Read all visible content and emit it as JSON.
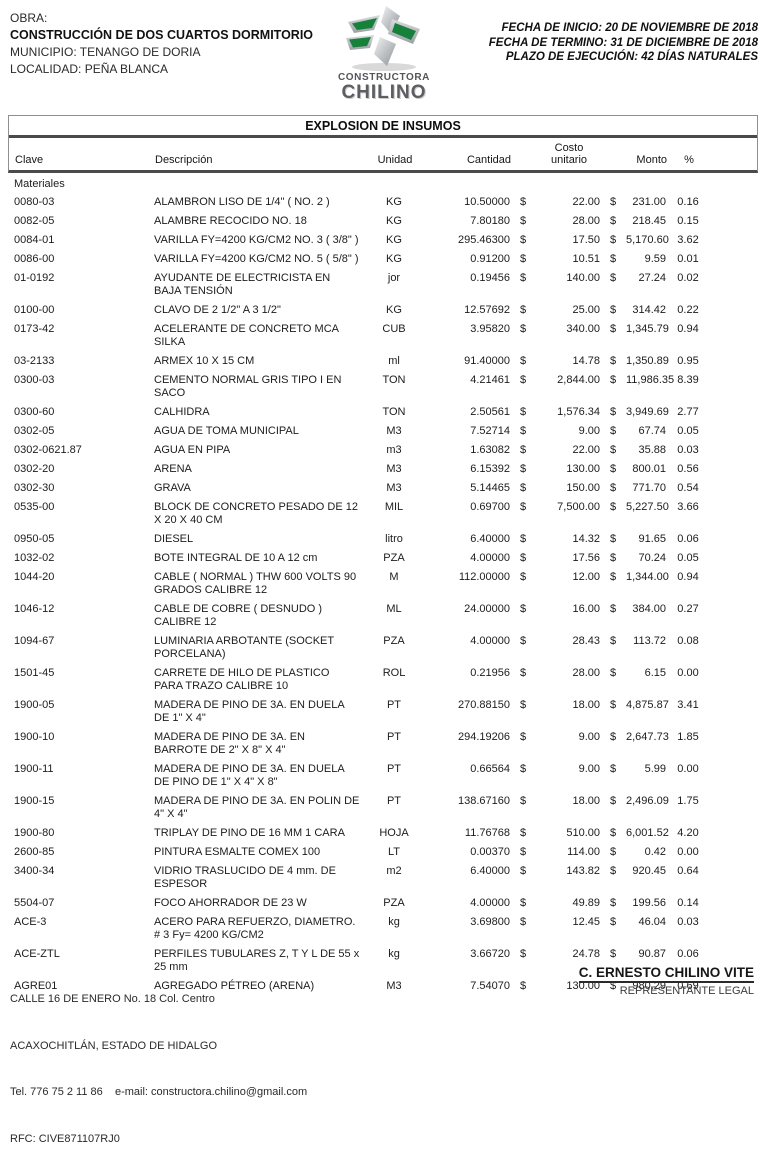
{
  "header": {
    "obra_label": "OBRA:",
    "obra_title": "CONSTRUCCIÓN DE DOS CUARTOS DORMITORIO",
    "municipio": "MUNICIPIO: TENANGO DE DORIA",
    "localidad": "LOCALIDAD: PEÑA BLANCA",
    "fecha_inicio": "FECHA DE INICIO: 20 DE NOVIEMBRE DE 2018",
    "fecha_termino": "FECHA DE TERMINO: 31 DE DICIEMBRE DE 2018",
    "plazo": "PLAZO DE EJECUCIÓN: 42 DÍAS NATURALES",
    "logo": {
      "line1": "CONSTRUCTORA",
      "line2": "CHILINO",
      "green": "#17813c",
      "silver_light": "#eef0f1",
      "silver_dark": "#8e9398",
      "text_color": "#55565a"
    }
  },
  "table": {
    "title": "EXPLOSION DE INSUMOS",
    "currency_symbol": "$",
    "header": {
      "clave": "Clave",
      "descripcion": "Descripción",
      "unidad": "Unidad",
      "cantidad": "Cantidad",
      "costo_line1": "Costo",
      "costo_line2": "unitario",
      "monto": "Monto",
      "pct": "%"
    },
    "section": "Materiales",
    "rows": [
      {
        "clave": "0080-03",
        "descripcion": "ALAMBRON LISO DE 1/4\" ( NO. 2 )",
        "unidad": "KG",
        "cantidad": "10.50000",
        "unitario": "22.00",
        "monto": "231.00",
        "pct": "0.16"
      },
      {
        "clave": "0082-05",
        "descripcion": "ALAMBRE RECOCIDO NO. 18",
        "unidad": "KG",
        "cantidad": "7.80180",
        "unitario": "28.00",
        "monto": "218.45",
        "pct": "0.15"
      },
      {
        "clave": "0084-01",
        "descripcion": "VARILLA FY=4200 KG/CM2 NO. 3 ( 3/8\" )",
        "unidad": "KG",
        "cantidad": "295.46300",
        "unitario": "17.50",
        "monto": "5,170.60",
        "pct": "3.62"
      },
      {
        "clave": "0086-00",
        "descripcion": "VARILLA FY=4200 KG/CM2 NO. 5 ( 5/8\" )",
        "unidad": "KG",
        "cantidad": "0.91200",
        "unitario": "10.51",
        "monto": "9.59",
        "pct": "0.01"
      },
      {
        "clave": "01-0192",
        "descripcion": "AYUDANTE DE ELECTRICISTA EN BAJA TENSIÓN",
        "unidad": "jor",
        "cantidad": "0.19456",
        "unitario": "140.00",
        "monto": "27.24",
        "pct": "0.02"
      },
      {
        "clave": "0100-00",
        "descripcion": "CLAVO DE 2 1/2\" A 3 1/2\"",
        "unidad": "KG",
        "cantidad": "12.57692",
        "unitario": "25.00",
        "monto": "314.42",
        "pct": "0.22"
      },
      {
        "clave": "0173-42",
        "descripcion": "ACELERANTE DE CONCRETO MCA SILKA",
        "unidad": "CUB",
        "cantidad": "3.95820",
        "unitario": "340.00",
        "monto": "1,345.79",
        "pct": "0.94"
      },
      {
        "clave": "03-2133",
        "descripcion": "ARMEX 10 X 15 CM",
        "unidad": "ml",
        "cantidad": "91.40000",
        "unitario": "14.78",
        "monto": "1,350.89",
        "pct": "0.95"
      },
      {
        "clave": "0300-03",
        "descripcion": "CEMENTO NORMAL GRIS TIPO I EN SACO",
        "unidad": "TON",
        "cantidad": "4.21461",
        "unitario": "2,844.00",
        "monto": "11,986.35",
        "pct": "8.39"
      },
      {
        "clave": "0300-60",
        "descripcion": "CALHIDRA",
        "unidad": "TON",
        "cantidad": "2.50561",
        "unitario": "1,576.34",
        "monto": "3,949.69",
        "pct": "2.77"
      },
      {
        "clave": "0302-05",
        "descripcion": "AGUA DE TOMA MUNICIPAL",
        "unidad": "M3",
        "cantidad": "7.52714",
        "unitario": "9.00",
        "monto": "67.74",
        "pct": "0.05"
      },
      {
        "clave": "0302-0621.87",
        "descripcion": "AGUA EN PIPA",
        "unidad": "m3",
        "cantidad": "1.63082",
        "unitario": "22.00",
        "monto": "35.88",
        "pct": "0.03"
      },
      {
        "clave": "0302-20",
        "descripcion": "ARENA",
        "unidad": "M3",
        "cantidad": "6.15392",
        "unitario": "130.00",
        "monto": "800.01",
        "pct": "0.56"
      },
      {
        "clave": "0302-30",
        "descripcion": "GRAVA",
        "unidad": "M3",
        "cantidad": "5.14465",
        "unitario": "150.00",
        "monto": "771.70",
        "pct": "0.54"
      },
      {
        "clave": "0535-00",
        "descripcion": "BLOCK DE CONCRETO PESADO DE 12 X 20 X 40 CM",
        "unidad": "MIL",
        "cantidad": "0.69700",
        "unitario": "7,500.00",
        "monto": "5,227.50",
        "pct": "3.66"
      },
      {
        "clave": "0950-05",
        "descripcion": "DIESEL",
        "unidad": "litro",
        "cantidad": "6.40000",
        "unitario": "14.32",
        "monto": "91.65",
        "pct": "0.06"
      },
      {
        "clave": "1032-02",
        "descripcion": "BOTE INTEGRAL DE 10 A 12 cm",
        "unidad": "PZA",
        "cantidad": "4.00000",
        "unitario": "17.56",
        "monto": "70.24",
        "pct": "0.05"
      },
      {
        "clave": "1044-20",
        "descripcion": "CABLE ( NORMAL ) THW 600 VOLTS 90 GRADOS  CALIBRE 12",
        "unidad": "M",
        "cantidad": "112.00000",
        "unitario": "12.00",
        "monto": "1,344.00",
        "pct": "0.94"
      },
      {
        "clave": "1046-12",
        "descripcion": "CABLE DE COBRE ( DESNUDO ) CALIBRE 12",
        "unidad": "ML",
        "cantidad": "24.00000",
        "unitario": "16.00",
        "monto": "384.00",
        "pct": "0.27"
      },
      {
        "clave": "1094-67",
        "descripcion": "LUMINARIA ARBOTANTE (SOCKET PORCELANA)",
        "unidad": "PZA",
        "cantidad": "4.00000",
        "unitario": "28.43",
        "monto": "113.72",
        "pct": "0.08"
      },
      {
        "clave": "1501-45",
        "descripcion": "CARRETE DE HILO DE PLASTICO PARA TRAZO CALIBRE 10",
        "unidad": "ROL",
        "cantidad": "0.21956",
        "unitario": "28.00",
        "monto": "6.15",
        "pct": "0.00"
      },
      {
        "clave": "1900-05",
        "descripcion": "MADERA DE PINO DE 3A. EN DUELA DE 1\" X 4\"",
        "unidad": "PT",
        "cantidad": "270.88150",
        "unitario": "18.00",
        "monto": "4,875.87",
        "pct": "3.41"
      },
      {
        "clave": "1900-10",
        "descripcion": "MADERA DE PINO DE 3A. EN BARROTE DE 2\" X 8\" X 4\"",
        "unidad": "PT",
        "cantidad": "294.19206",
        "unitario": "9.00",
        "monto": "2,647.73",
        "pct": "1.85"
      },
      {
        "clave": "1900-11",
        "descripcion": "MADERA DE PINO DE 3A. EN DUELA DE PINO DE 1\" X 4\" X 8\"",
        "unidad": "PT",
        "cantidad": "0.66564",
        "unitario": "9.00",
        "monto": "5.99",
        "pct": "0.00"
      },
      {
        "clave": "1900-15",
        "descripcion": "MADERA DE PINO DE 3A. EN POLIN DE 4\" X 4\"",
        "unidad": "PT",
        "cantidad": "138.67160",
        "unitario": "18.00",
        "monto": "2,496.09",
        "pct": "1.75"
      },
      {
        "clave": "1900-80",
        "descripcion": "TRIPLAY DE PINO DE 16 MM 1 CARA",
        "unidad": "HOJA",
        "cantidad": "11.76768",
        "unitario": "510.00",
        "monto": "6,001.52",
        "pct": "4.20"
      },
      {
        "clave": "2600-85",
        "descripcion": "PINTURA ESMALTE COMEX 100",
        "unidad": "LT",
        "cantidad": "0.00370",
        "unitario": "114.00",
        "monto": "0.42",
        "pct": "0.00"
      },
      {
        "clave": "3400-34",
        "descripcion": "VIDRIO TRASLUCIDO DE 4 mm. DE ESPESOR",
        "unidad": "m2",
        "cantidad": "6.40000",
        "unitario": "143.82",
        "monto": "920.45",
        "pct": "0.64"
      },
      {
        "clave": "5504-07",
        "descripcion": "FOCO AHORRADOR DE 23 W",
        "unidad": "PZA",
        "cantidad": "4.00000",
        "unitario": "49.89",
        "monto": "199.56",
        "pct": "0.14"
      },
      {
        "clave": "ACE-3",
        "descripcion": "ACERO PARA REFUERZO, DIAMETRO. # 3 Fy= 4200 KG/CM2",
        "unidad": "kg",
        "cantidad": "3.69800",
        "unitario": "12.45",
        "monto": "46.04",
        "pct": "0.03"
      },
      {
        "clave": "ACE-ZTL",
        "descripcion": "PERFILES TUBULARES Z, T Y L DE 55 x 25 mm",
        "unidad": "kg",
        "cantidad": "3.66720",
        "unitario": "24.78",
        "monto": "90.87",
        "pct": "0.06"
      },
      {
        "clave": "AGRE01",
        "descripcion": "AGREGADO PÉTREO (ARENA)",
        "unidad": "M3",
        "cantidad": "7.54070",
        "unitario": "130.00",
        "monto": "980.29",
        "pct": "0.69"
      }
    ]
  },
  "footer": {
    "address_line1": "CALLE 16 DE ENERO No. 18 Col. Centro",
    "address_line2": "ACAXOCHITLÁN, ESTADO DE HIDALGO",
    "contact_line": "Tel. 776 75 2 11 86    e-mail: constructora.chilino@gmail.com",
    "rfc": "RFC: CIVE871107RJ0",
    "signatory_name": "C. ERNESTO CHILINO VITE",
    "signatory_role": "REPRESENTANTE LEGAL"
  }
}
